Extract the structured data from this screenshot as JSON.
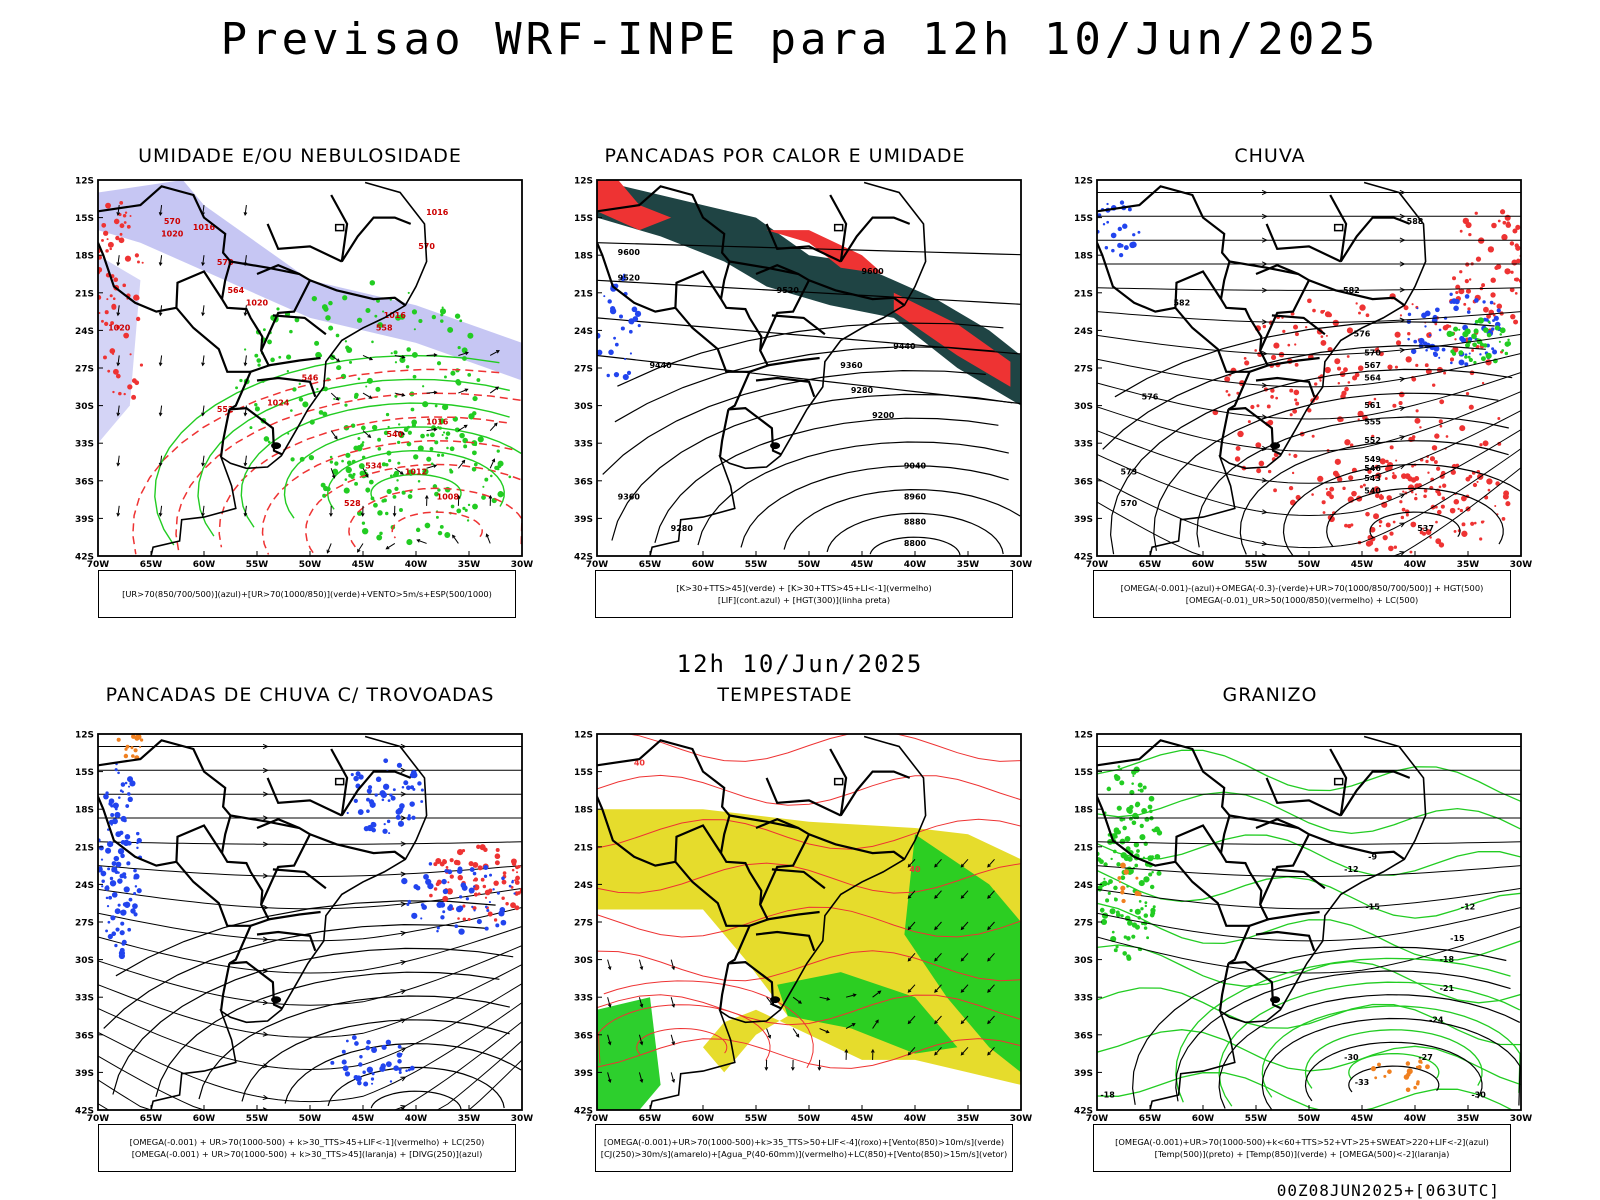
{
  "page": {
    "title": "Previsao WRF-INPE  para 12h 10/Jun/2025",
    "mid_title": "12h 10/Jun/2025",
    "footer": "00Z08JUN2025+[063UTC]"
  },
  "colors": {
    "red": "#ee3333",
    "green": "#22cc22",
    "blue": "#2244ee",
    "lavender": "#b8b8f0",
    "darkteal": "#1f4444",
    "teal": "#3a7070",
    "yellow": "#e6dc2c",
    "orange": "#f08020",
    "black": "#000000"
  },
  "panels": [
    {
      "id": "p1",
      "title": "UMIDADE E/OU NEBULOSIDADE",
      "legend": [
        "[UR>70(850/700/500)](azul)+[UR>70(1000/850)](verde)+VENTO>5m/s+ESP(500/1000)"
      ],
      "labels": [
        "570",
        "570",
        "564",
        "552",
        "546",
        "540",
        "534",
        "528",
        "558",
        "570",
        "1016",
        "1016",
        "1020",
        "1020",
        "1016",
        "1024",
        "1012",
        "1008",
        "1016",
        "1020"
      ]
    },
    {
      "id": "p2",
      "title": "PANCADAS POR CALOR E UMIDADE",
      "legend": [
        "[K>30+TTS>45](verde) + [K>30+TTS>45+LI<-1](vermelho)",
        "[LIF](cont.azul) + [HGT(300)](linha preta)"
      ],
      "labels": [
        "9600",
        "9600",
        "9520",
        "9520",
        "9440",
        "9440",
        "9360",
        "9280",
        "9200",
        "9040",
        "8960",
        "8880",
        "8800",
        "9360",
        "9280"
      ]
    },
    {
      "id": "p3",
      "title": "CHUVA",
      "legend": [
        "[OMEGA(-0.001)-(azul)+OMEGA(-0.3)-(verde)+UR>70(1000/850/700/500)] + HGT(500)",
        "[OMEGA(-0.01)_UR>50(1000/850)(vermelho) + LC(500)"
      ],
      "labels": [
        "588",
        "582",
        "582",
        "576",
        "570",
        "567",
        "564",
        "561",
        "555",
        "552",
        "549",
        "546",
        "543",
        "540",
        "537",
        "576",
        "573",
        "570"
      ]
    },
    {
      "id": "p4",
      "title": "PANCADAS DE CHUVA C/ TROVOADAS",
      "legend": [
        "[OMEGA(-0.001) + UR>70(1000-500) + k>30_TTS>45+LIF<-1](vermelho) + LC(250)",
        "[OMEGA(-0.001) + UR>70(1000-500) + k>30_TTS>45](laranja) + [DIVG(250)](azul)"
      ],
      "labels": []
    },
    {
      "id": "p5",
      "title": "TEMPESTADE",
      "legend": [
        "[OMEGA(-0.001)+UR>70(1000-500)+k>35_TTS>50+LIF<-4](roxo)+[Vento(850)>10m/s](verde)",
        "[CJ(250)>30m/s](amarelo)+[Agua_P(40-60mm)](vermelho)+LC(850)+[Vento(850)>15m/s](vetor)"
      ],
      "labels": [
        "40",
        "40"
      ]
    },
    {
      "id": "p6",
      "title": "GRANIZO",
      "legend": [
        "[OMEGA(-0.001)+UR>70(1000-500)+k<60+TTS>52+VT>25+SWEAT>220+LIF<-2](azul)",
        "[Temp(500)](preto) + [Temp(850)](verde) + [OMEGA(500)<-2](laranja)"
      ],
      "labels": [
        "-12",
        "-15",
        "-18",
        "-21",
        "-24",
        "-27",
        "-30",
        "-30",
        "-33",
        "-18",
        "-9",
        "-12",
        "-15"
      ]
    }
  ],
  "axes": {
    "lat_ticks": [
      "12S",
      "15S",
      "18S",
      "21S",
      "24S",
      "27S",
      "30S",
      "33S",
      "36S",
      "39S",
      "42S"
    ],
    "lon_ticks": [
      "70W",
      "65W",
      "60W",
      "55W",
      "50W",
      "45W",
      "40W",
      "35W",
      "30W"
    ]
  },
  "chart_data": {
    "type": "map",
    "title": "Previsao WRF-INPE  para 12h 10/Jun/2025",
    "lat_range": [
      "12S",
      "42S"
    ],
    "lon_range": [
      "70W",
      "30W"
    ],
    "panels": [
      "UMIDADE E/OU NEBULOSIDADE",
      "PANCADAS POR CALOR E UMIDADE",
      "CHUVA",
      "PANCADAS DE CHUVA C/ TROVOADAS",
      "TEMPESTADE",
      "GRANIZO"
    ],
    "contour_labels": {
      "esp_500_1000": [
        570,
        564,
        558,
        552,
        546,
        540,
        534,
        528
      ],
      "slp": [
        1024,
        1020,
        1016,
        1012,
        1008
      ],
      "hgt_300": [
        9600,
        9520,
        9440,
        9360,
        9280,
        9200,
        9040,
        8960,
        8880,
        8800
      ],
      "hgt_500": [
        588,
        582,
        576,
        573,
        570,
        567,
        564,
        561,
        555,
        552,
        549,
        546,
        543,
        540,
        537
      ],
      "temp_500": [
        -12,
        -15,
        -18,
        -21,
        -24,
        -27,
        -30,
        -33
      ]
    }
  }
}
